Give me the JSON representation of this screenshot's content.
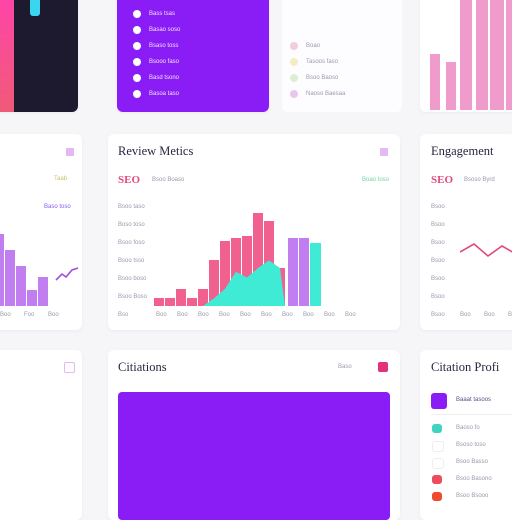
{
  "colors": {
    "purple": "#8a1cf5",
    "pink": "#f0618f",
    "teal": "#40ebd6",
    "lavender": "#c07ef0",
    "light_pink": "#ef9ccd",
    "dark": "#2a2540",
    "accent_red": "#e0317a"
  },
  "top_left": {
    "bar_colors": [
      "#f05a78",
      "#3ad6ef"
    ]
  },
  "top_purple_list": {
    "items": [
      "Bass tsas",
      "Basao soso",
      "Bsaso toss",
      "Bsooo faso",
      "Basd tsono",
      "Basoa taso"
    ]
  },
  "top_legend": {
    "items": [
      {
        "label": "Boao",
        "color": "#f2cdd9"
      },
      {
        "label": "Tasoos faso",
        "color": "#f2edc4"
      },
      {
        "label": "Bsoo Baoso",
        "color": "#dcefd2"
      },
      {
        "label": "Naoso Baesaa",
        "color": "#e8c5ee"
      }
    ]
  },
  "left_card": {
    "small_badge": "Taab",
    "legend_label": "Baso toso",
    "bars": [
      {
        "value": 80,
        "color": "#c07ef0"
      },
      {
        "value": 62,
        "color": "#c07ef0"
      },
      {
        "value": 45,
        "color": "#c07ef0"
      },
      {
        "value": 18,
        "color": "#c07ef0"
      },
      {
        "value": 32,
        "color": "#c07ef0"
      }
    ],
    "x_labels": [
      "Boo",
      "Foo",
      "Boo"
    ]
  },
  "review_metrics": {
    "title": "Review Metics",
    "metric": "SEO",
    "metric_sub": "Bsoo Boaso",
    "badge": "Boao toso",
    "y_labels": [
      "Bsoo taso",
      "Boso toso",
      "Bsoo foso",
      "Bsoo tsso",
      "Bsoo boso",
      "Bsoo Boso",
      "Bso"
    ],
    "x_labels": [
      "Boo",
      "Boo",
      "Boo",
      "Boo",
      "Boo",
      "Boo",
      "Boo",
      "Boo",
      "Boo",
      "Boo"
    ],
    "pink_bars": [
      4,
      4,
      9,
      4,
      9,
      24,
      34,
      36,
      37,
      49,
      45,
      20
    ],
    "teal_area": [
      0,
      0,
      0,
      0,
      0,
      4,
      9,
      18,
      15,
      20,
      24,
      20
    ],
    "purple_bars": [
      36,
      36
    ],
    "teal_bar": 33
  },
  "engagement": {
    "title": "Engagement",
    "metric": "SEO",
    "metric_sub": "Bsoso Byrd",
    "y_labels": [
      "Bsoo",
      "Bsoo",
      "Bsoo",
      "Bsoo",
      "Bsoo",
      "Bsoo",
      "Bsoo"
    ],
    "x_labels": [
      "Boo",
      "Boo",
      "Boo"
    ],
    "line": [
      18,
      10,
      22,
      12,
      20
    ]
  },
  "citations": {
    "title": "Citiations",
    "link_label": "Baso"
  },
  "citation_profile": {
    "title": "Citation Profi",
    "header_label": "Baaat tasoos",
    "items": [
      {
        "label": "Baoso fo",
        "color": "#40d3c2"
      },
      {
        "label": "Bsoso toso",
        "color": "#ffffff"
      },
      {
        "label": "Bsoo Basso",
        "color": "#ffffff"
      },
      {
        "label": "Bsoo Basono",
        "color": "#ef4b5f"
      },
      {
        "label": "Bsoo Bsooo",
        "color": "#f04a2f"
      }
    ]
  }
}
